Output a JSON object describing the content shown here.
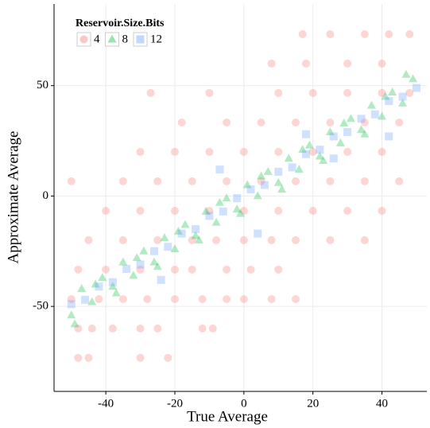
{
  "chart_data": {
    "type": "scatter",
    "x_label": "True Average",
    "y_label": "Approximate Average",
    "legend_title": "Reservoir.Size.Bits",
    "legend_position": "top-left",
    "grid": true,
    "xlim": [
      -55,
      53
    ],
    "ylim": [
      -88.5,
      87
    ],
    "xticks": [
      -40,
      -20,
      0,
      20,
      40
    ],
    "yticks": [
      -50,
      0,
      50
    ],
    "series": [
      {
        "name": "4",
        "color": "#f8766d",
        "marker": "circle",
        "x": [
          -48,
          -45,
          -30,
          -22,
          -48,
          -44,
          -38,
          -30,
          -25,
          -12,
          -9,
          -50,
          -42,
          -35,
          -28,
          -20,
          -12,
          -5,
          0,
          8,
          15,
          -48,
          -40,
          -30,
          -20,
          -15,
          -5,
          2,
          10,
          -45,
          -35,
          -25,
          -15,
          -8,
          0,
          8,
          15,
          25,
          35,
          -50,
          -40,
          -30,
          -20,
          -10,
          0,
          10,
          20,
          30,
          40,
          -35,
          -25,
          -15,
          -5,
          5,
          15,
          25,
          35,
          45,
          -30,
          -20,
          -10,
          0,
          10,
          20,
          30,
          40,
          -18,
          -5,
          5,
          15,
          25,
          35,
          45,
          -27,
          -10,
          10,
          20,
          30,
          40,
          48,
          8,
          18,
          30,
          40,
          17,
          25,
          35,
          42,
          48
        ],
        "y": [
          -73.3,
          -73.3,
          -73.3,
          -73.3,
          -60,
          -60,
          -60,
          -60,
          -60,
          -60,
          -60,
          -46.7,
          -46.7,
          -46.7,
          -46.7,
          -46.7,
          -46.7,
          -46.7,
          -46.7,
          -46.7,
          -46.7,
          -33.3,
          -33.3,
          -33.3,
          -33.3,
          -33.3,
          -33.3,
          -33.3,
          -33.3,
          -20,
          -20,
          -20,
          -20,
          -20,
          -20,
          -20,
          -20,
          -20,
          -20,
          6.7,
          -6.7,
          -6.7,
          -6.7,
          -6.7,
          -6.7,
          -6.7,
          -6.7,
          -6.7,
          -6.7,
          6.7,
          6.7,
          6.7,
          6.7,
          6.7,
          6.7,
          6.7,
          6.7,
          6.7,
          20,
          20,
          20,
          20,
          20,
          20,
          20,
          20,
          33.3,
          33.3,
          33.3,
          33.3,
          33.3,
          33.3,
          33.3,
          46.7,
          46.7,
          46.7,
          46.7,
          46.7,
          46.7,
          46.7,
          60,
          60,
          60,
          60,
          73.3,
          73.3,
          73.3,
          73.3,
          73.3
        ]
      },
      {
        "name": "8",
        "color": "#00ba38",
        "marker": "triangle",
        "x": [
          -50,
          -47,
          -44,
          -41,
          -38,
          -35,
          -32,
          -29,
          -26,
          -23,
          -20,
          -17,
          -14,
          -11,
          -8,
          -5,
          -2,
          1,
          4,
          7,
          10,
          13,
          16,
          19,
          22,
          25,
          28,
          31,
          34,
          37,
          40,
          43,
          46,
          49,
          -49,
          -43,
          -37,
          -31,
          -25,
          -19,
          -13,
          -7,
          -1,
          5,
          11,
          17,
          23,
          29,
          35,
          41,
          47
        ],
        "y": [
          -54,
          -42,
          -48,
          -37,
          -41,
          -30,
          -36,
          -25,
          -30,
          -19,
          -24,
          -13,
          -18,
          -7,
          -12,
          -1,
          -6,
          5,
          0,
          11,
          6,
          17,
          12,
          23,
          18,
          29,
          24,
          35,
          30,
          41,
          36,
          47,
          42,
          53,
          -58,
          -40,
          -44,
          -28,
          -32,
          -16,
          -20,
          -3,
          -8,
          9,
          3,
          21,
          16,
          33,
          28,
          45,
          55
        ]
      },
      {
        "name": "12",
        "color": "#619cff",
        "marker": "square",
        "x": [
          -50,
          -46,
          -42,
          -38,
          -34,
          -30,
          -26,
          -22,
          -18,
          -14,
          -10,
          -6,
          -2,
          2,
          6,
          10,
          14,
          18,
          22,
          26,
          30,
          34,
          38,
          42,
          46,
          50,
          -7,
          18,
          42,
          -24,
          4,
          26
        ],
        "y": [
          -49,
          -47,
          -41,
          -39,
          -33,
          -31,
          -25,
          -23,
          -17,
          -15,
          -9,
          -7,
          -1,
          3,
          5,
          11,
          13,
          19,
          21,
          27,
          29,
          35,
          37,
          43,
          45,
          49,
          12,
          28,
          27,
          -38,
          -17,
          17
        ]
      }
    ]
  }
}
